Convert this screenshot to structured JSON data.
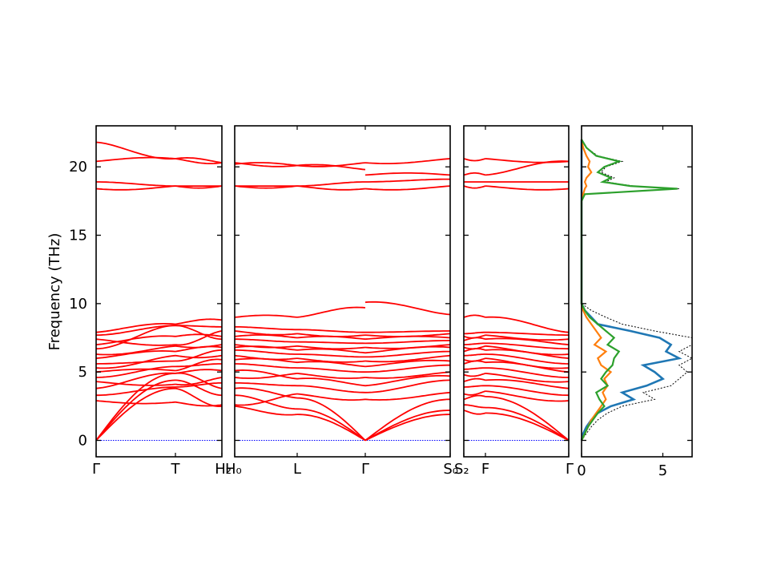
{
  "chart_data": {
    "type": "line",
    "title": "",
    "ylabel": "Frequency (THz)",
    "ylim": [
      -1.2,
      23
    ],
    "yticks": [
      0,
      5,
      10,
      15,
      20
    ],
    "grid": false,
    "colors": {
      "bands": "#ff0000",
      "zero_line": "#0000ff",
      "pdos_total": "#000000",
      "pdos_1": "#1f77b4",
      "pdos_2": "#ff7f0e",
      "pdos_3": "#2ca02c"
    },
    "panels": [
      {
        "xticks": [
          "Γ",
          "T",
          "H₂"
        ],
        "segments": [
          {
            "from": "Γ",
            "to": "T",
            "bands_start": [
              0,
              0,
              0,
              2.9,
              3.3,
              3.8,
              4.3,
              4.6,
              5.0,
              5.3,
              5.6,
              6.0,
              6.3,
              6.7,
              7.0,
              7.4,
              7.7,
              7.9,
              18.4,
              18.9,
              20.4,
              21.8
            ],
            "bands_end": [
              3.8,
              4.4,
              4.9,
              2.8,
              3.9,
              4.9,
              4.1,
              5.4,
              5.1,
              6.2,
              5.8,
              6.5,
              6.9,
              8.4,
              7.6,
              7.0,
              8.4,
              8.5,
              18.6,
              18.6,
              20.6,
              20.6
            ]
          },
          {
            "from": "T",
            "to": "H₂",
            "bands_start": [
              3.8,
              4.4,
              4.9,
              2.8,
              3.9,
              4.9,
              4.1,
              5.4,
              5.1,
              6.2,
              5.8,
              6.5,
              6.9,
              8.4,
              7.6,
              7.0,
              8.4,
              8.5,
              18.6,
              18.6,
              20.6,
              20.6
            ],
            "bands_end": [
              2.5,
              3.3,
              3.8,
              2.6,
              4.2,
              5.1,
              4.6,
              5.6,
              5.9,
              6.2,
              6.6,
              6.8,
              7.0,
              7.4,
              7.6,
              8.0,
              8.3,
              8.8,
              18.6,
              18.6,
              20.3,
              20.3
            ]
          }
        ]
      },
      {
        "xticks": [
          "H₀",
          "L",
          "Γ",
          "S₀"
        ],
        "segments": [
          {
            "from": "H₀",
            "to": "L",
            "bands_start": [
              2.5,
              3.3,
              3.8,
              2.6,
              4.2,
              5.1,
              4.6,
              5.6,
              5.9,
              6.2,
              6.6,
              6.8,
              7.0,
              7.4,
              7.6,
              8.0,
              8.3,
              9.0,
              18.6,
              18.6,
              20.2,
              20.3
            ],
            "bands_end": [
              1.9,
              2.3,
              3.1,
              3.4,
              4.0,
              4.5,
              4.9,
              5.3,
              5.7,
              6.0,
              6.3,
              6.6,
              6.9,
              7.2,
              7.5,
              7.8,
              8.1,
              9.0,
              18.6,
              18.6,
              20.1,
              20.1
            ]
          },
          {
            "from": "L",
            "to": "Γ",
            "bands_start": [
              1.9,
              2.3,
              3.1,
              3.4,
              4.0,
              4.5,
              4.9,
              5.3,
              5.7,
              6.0,
              6.3,
              6.6,
              6.9,
              7.2,
              7.5,
              7.8,
              8.1,
              9.0,
              18.6,
              18.6,
              20.1,
              20.1
            ],
            "bands_end": [
              0,
              0,
              0,
              3.0,
              3.5,
              4.0,
              4.6,
              5.0,
              5.4,
              5.8,
              6.1,
              6.4,
              6.8,
              7.1,
              7.4,
              7.7,
              7.9,
              9.7,
              18.4,
              18.9,
              19.8,
              20.3
            ]
          },
          {
            "from": "Γ",
            "to": "S₀",
            "bands_start": [
              0,
              0,
              0,
              3.0,
              3.5,
              4.0,
              4.6,
              5.0,
              5.4,
              5.8,
              6.1,
              6.4,
              6.8,
              7.1,
              7.4,
              7.7,
              7.9,
              10.1,
              18.4,
              18.9,
              19.4,
              20.3
            ],
            "bands_end": [
              1.9,
              2.2,
              3.0,
              3.5,
              4.4,
              4.7,
              5.0,
              5.5,
              5.8,
              6.2,
              6.5,
              6.8,
              7.0,
              7.3,
              7.5,
              7.8,
              8.0,
              9.2,
              18.6,
              19.1,
              19.4,
              20.6
            ]
          }
        ]
      },
      {
        "xticks": [
          "S₂",
          "F",
          "Γ"
        ],
        "segments": [
          {
            "from": "S₂",
            "to": "F",
            "bands_start": [
              2.2,
              2.6,
              3.0,
              3.4,
              3.9,
              4.3,
              4.8,
              5.2,
              5.6,
              5.9,
              6.2,
              6.5,
              6.8,
              7.0,
              7.3,
              7.6,
              7.8,
              9.0,
              18.6,
              18.9,
              19.4,
              20.6
            ],
            "bands_end": [
              2.0,
              2.4,
              3.2,
              3.6,
              4.0,
              4.4,
              4.9,
              5.3,
              5.7,
              6.0,
              6.3,
              6.6,
              6.9,
              7.1,
              7.4,
              7.7,
              7.9,
              9.0,
              18.6,
              18.9,
              19.4,
              20.6
            ]
          },
          {
            "from": "F",
            "to": "Γ",
            "bands_start": [
              2.0,
              2.4,
              3.2,
              3.6,
              4.0,
              4.4,
              4.9,
              5.3,
              5.7,
              6.0,
              6.3,
              6.6,
              6.9,
              7.1,
              7.4,
              7.7,
              7.9,
              9.0,
              18.6,
              18.9,
              19.4,
              20.6
            ],
            "bands_end": [
              0,
              0,
              0,
              2.9,
              3.3,
              3.8,
              4.3,
              4.6,
              5.0,
              5.3,
              5.6,
              6.0,
              6.3,
              6.7,
              7.0,
              7.4,
              7.7,
              7.9,
              18.4,
              18.9,
              20.4,
              20.4
            ]
          }
        ]
      }
    ],
    "dos": {
      "xlim": [
        0,
        6.8
      ],
      "xticks": [
        0,
        5
      ],
      "frequency": [
        0,
        0.5,
        1,
        1.5,
        2,
        2.5,
        3,
        3.5,
        4,
        4.5,
        5,
        5.5,
        6,
        6.5,
        7,
        7.5,
        8,
        8.5,
        9,
        9.5,
        10,
        17.5,
        18,
        18.4,
        18.6,
        18.9,
        19.2,
        19.6,
        20,
        20.4,
        20.8,
        21.4,
        22
      ],
      "total": [
        0,
        0.3,
        0.6,
        1.0,
        1.6,
        2.5,
        4.5,
        3.8,
        5.5,
        6.0,
        6.5,
        6.0,
        6.8,
        6.0,
        6.8,
        6.8,
        4.5,
        2.5,
        1.5,
        0.6,
        0,
        0,
        0.2,
        6.0,
        3.2,
        1.5,
        2.0,
        1.2,
        1.5,
        2.5,
        1.0,
        0.3,
        0
      ],
      "series_1": [
        0,
        0.1,
        0.3,
        0.6,
        1.0,
        1.8,
        3.2,
        2.5,
        4.0,
        5.0,
        4.5,
        3.8,
        6.0,
        5.2,
        5.5,
        4.8,
        3.0,
        1.0,
        0.6,
        0.2,
        0,
        0,
        0,
        0,
        0,
        0,
        0,
        0,
        0,
        0,
        0,
        0,
        0
      ],
      "series_2": [
        0,
        0.2,
        0.4,
        0.6,
        0.9,
        1.2,
        1.5,
        1.3,
        1.6,
        1.4,
        1.8,
        1.2,
        1.0,
        1.5,
        0.8,
        1.2,
        0.9,
        0.6,
        0.3,
        0.1,
        0,
        0,
        0.1,
        0.2,
        0.3,
        0.2,
        0.3,
        0.6,
        0.4,
        0.5,
        0.3,
        0.1,
        0
      ],
      "series_3": [
        0,
        0.2,
        0.4,
        0.7,
        1.0,
        1.4,
        1.1,
        0.9,
        1.6,
        1.2,
        1.5,
        1.9,
        2.0,
        2.3,
        1.6,
        2.0,
        1.5,
        1.0,
        0.5,
        0.2,
        0,
        0,
        0.2,
        5.9,
        3.0,
        1.3,
        1.8,
        1.0,
        1.4,
        2.3,
        0.9,
        0.3,
        0
      ]
    }
  }
}
